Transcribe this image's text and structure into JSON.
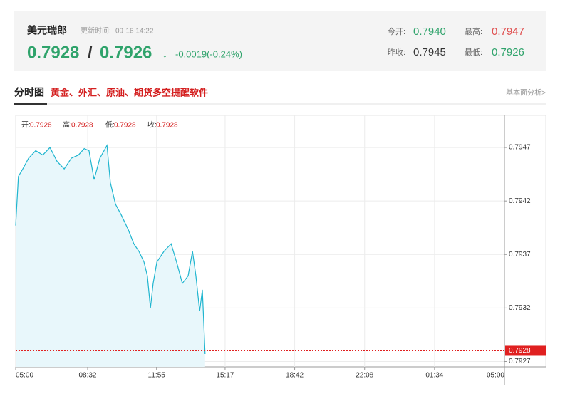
{
  "header": {
    "name": "美元瑞郎",
    "update_label": "更新时间:",
    "update_time": "09-16 14:22",
    "price": "0.7928",
    "separator": "/",
    "price2": "0.7926",
    "arrow": "↓",
    "change": "-0.0019(-0.24%)",
    "open_label": "今开:",
    "open": "0.7940",
    "high_label": "最高:",
    "high": "0.7947",
    "prev_label": "昨收:",
    "prev": "0.7945",
    "low_label": "最低:",
    "low": "0.7926"
  },
  "tabs": {
    "title": "分时图",
    "promo": "黄金、外汇、原油、期货多空提醒软件",
    "link": "基本面分析>"
  },
  "chart_data": {
    "type": "line",
    "info": [
      {
        "label": "开:",
        "value": "0.7928"
      },
      {
        "label": "高:",
        "value": "0.7928"
      },
      {
        "label": "低:",
        "value": "0.7928"
      },
      {
        "label": "收:",
        "value": "0.7928"
      }
    ],
    "x": [
      0,
      8,
      21,
      38,
      59,
      80,
      101,
      122,
      143,
      164,
      185,
      202,
      216,
      231,
      248,
      269,
      279,
      294,
      311,
      332,
      348,
      363,
      378,
      388,
      397,
      405,
      416,
      437,
      458,
      474,
      491,
      508,
      521,
      531,
      542,
      550,
      558
    ],
    "series": [
      {
        "color": "#1fb5cf",
        "values": [
          0.79397,
          0.79443,
          0.7945,
          0.7946,
          0.79467,
          0.79463,
          0.7947,
          0.79457,
          0.7945,
          0.7946,
          0.79463,
          0.79469,
          0.79467,
          0.7944,
          0.7946,
          0.79472,
          0.79437,
          0.79417,
          0.79407,
          0.79393,
          0.7938,
          0.79373,
          0.79363,
          0.7935,
          0.7932,
          0.79343,
          0.79363,
          0.79373,
          0.7938,
          0.79363,
          0.79343,
          0.7935,
          0.79373,
          0.7935,
          0.79317,
          0.79337,
          0.79277
        ]
      }
    ],
    "last": 0.7928,
    "last_color": "#e02020",
    "xlim": [
      0,
      1440
    ],
    "xticks": [
      {
        "value": 0,
        "label": "05:00"
      },
      {
        "value": 212,
        "label": "08:32"
      },
      {
        "value": 415,
        "label": "11:55"
      },
      {
        "value": 617,
        "label": "15:17"
      },
      {
        "value": 822,
        "label": "18:42"
      },
      {
        "value": 1028,
        "label": "22:08"
      },
      {
        "value": 1234,
        "label": "01:34"
      },
      {
        "value": 1440,
        "label": "05:00"
      }
    ],
    "ylim": [
      0.79265,
      0.795
    ],
    "yticks": [
      0.7947,
      0.7942,
      0.7937,
      0.7932,
      0.7927
    ],
    "grid": true
  }
}
